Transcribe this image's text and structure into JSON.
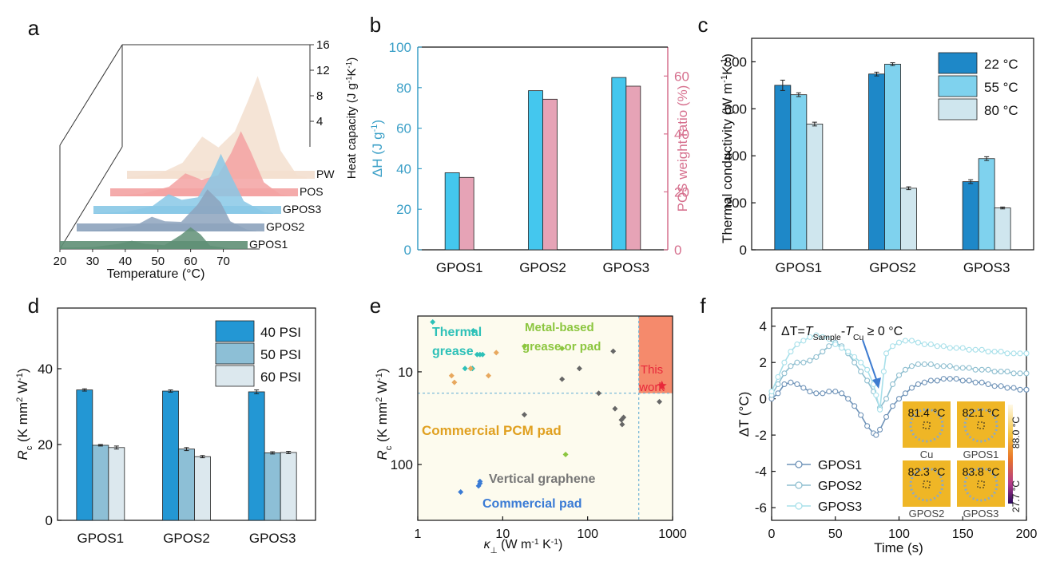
{
  "colors": {
    "b_dh": "#44c7ee",
    "b_ratio": "#e6a3b6",
    "b_left_axis": "#3a9fc7",
    "b_right_axis": "#d6708e",
    "c_22": "#1e88c8",
    "c_55": "#7fd2ee",
    "c_80": "#cfe6ee",
    "d_40": "#2397d4",
    "d_50": "#8dbfd6",
    "d_60": "#dce8ee",
    "e_bg": "#fdfbee",
    "e_this": "#f58a6c",
    "f_1": "#6f93b8",
    "f_2": "#8fbfd0",
    "f_3": "#a8e0ea"
  },
  "chart_data": [
    {
      "panel": "a",
      "type": "area",
      "xlabel": "Temperature (°C)",
      "ylabel": "Heat capacity (J g-1K-1)",
      "x_ticks": [
        "20",
        "30",
        "40",
        "50",
        "60",
        "70"
      ],
      "z_ticks": [
        "4",
        "8",
        "12",
        "16"
      ],
      "xlim": [
        20,
        75
      ],
      "zlim": [
        0,
        16
      ],
      "series": [
        {
          "name": "GPOS1",
          "color": "#5f8f76",
          "points": [
            [
              20,
              0.2
            ],
            [
              30,
              0.3
            ],
            [
              38,
              0.8
            ],
            [
              42,
              1.3
            ],
            [
              46,
              0.8
            ],
            [
              52,
              0.6
            ],
            [
              57,
              2.2
            ],
            [
              60,
              3.4
            ],
            [
              63,
              2.3
            ],
            [
              66,
              0.5
            ],
            [
              72,
              0.1
            ],
            [
              75,
              0.1
            ]
          ]
        },
        {
          "name": "GPOS2",
          "color": "#8da3bd",
          "points": [
            [
              20,
              0.1
            ],
            [
              30,
              0.3
            ],
            [
              38,
              0.9
            ],
            [
              43,
              2.3
            ],
            [
              47,
              1.6
            ],
            [
              52,
              1.5
            ],
            [
              57,
              4.2
            ],
            [
              60,
              6.6
            ],
            [
              64,
              4.6
            ],
            [
              67,
              1.6
            ],
            [
              72,
              0.3
            ],
            [
              75,
              0.1
            ]
          ]
        },
        {
          "name": "GPOS3",
          "color": "#88c8e6",
          "points": [
            [
              20,
              0.1
            ],
            [
              30,
              0.3
            ],
            [
              38,
              1.2
            ],
            [
              43,
              3.1
            ],
            [
              47,
              2.2
            ],
            [
              52,
              2.6
            ],
            [
              56,
              6.0
            ],
            [
              59,
              9.4
            ],
            [
              62,
              6.1
            ],
            [
              66,
              2.0
            ],
            [
              72,
              0.3
            ],
            [
              75,
              0.1
            ]
          ]
        },
        {
          "name": "POS",
          "color": "#f3a2a2",
          "points": [
            [
              20,
              0.1
            ],
            [
              30,
              0.4
            ],
            [
              38,
              1.5
            ],
            [
              43,
              3.6
            ],
            [
              48,
              2.6
            ],
            [
              53,
              3.3
            ],
            [
              57,
              6.8
            ],
            [
              60,
              10.2
            ],
            [
              63,
              7.0
            ],
            [
              67,
              2.2
            ],
            [
              72,
              0.3
            ],
            [
              75,
              0.1
            ]
          ]
        },
        {
          "name": "PW",
          "color": "#f3dfcf",
          "points": [
            [
              20,
              0.2
            ],
            [
              30,
              0.8
            ],
            [
              37,
              2.5
            ],
            [
              43,
              6.6
            ],
            [
              48,
              4.9
            ],
            [
              53,
              7.4
            ],
            [
              57,
              12.2
            ],
            [
              60,
              16.1
            ],
            [
              63,
              11.4
            ],
            [
              67,
              4.4
            ],
            [
              72,
              0.6
            ],
            [
              75,
              0.2
            ]
          ]
        }
      ]
    },
    {
      "panel": "b",
      "type": "bar",
      "categories": [
        "GPOS1",
        "GPOS2",
        "GPOS3"
      ],
      "series": [
        {
          "name": "ΔH",
          "axis": "left",
          "values": [
            38,
            78.5,
            85
          ]
        },
        {
          "name": "POS weight ratio",
          "axis": "right",
          "values": [
            25,
            52,
            56.5
          ]
        }
      ],
      "ylabel_left": "ΔH (J g-1)",
      "ylabel_right": "POS weight ratio (%)",
      "ylim_left": [
        0,
        100
      ],
      "ylim_right": [
        0,
        70
      ],
      "yticks_left": [
        "0",
        "20",
        "40",
        "60",
        "80",
        "100"
      ],
      "yticks_right": [
        "0",
        "20",
        "40",
        "60"
      ]
    },
    {
      "panel": "c",
      "type": "bar",
      "categories": [
        "GPOS1",
        "GPOS2",
        "GPOS3"
      ],
      "series": [
        {
          "name": "22 °C",
          "values": [
            700,
            748,
            290
          ],
          "errors": [
            22,
            8,
            8
          ]
        },
        {
          "name": "55 °C",
          "values": [
            660,
            790,
            388
          ],
          "errors": [
            8,
            6,
            8
          ]
        },
        {
          "name": "80 °C",
          "values": [
            535,
            262,
            178
          ],
          "errors": [
            8,
            6,
            4
          ]
        }
      ],
      "ylabel": "Thermal conductivity (W m-1K-1)",
      "ylim": [
        0,
        900
      ],
      "yticks": [
        "0",
        "200",
        "400",
        "600",
        "800"
      ],
      "legend": [
        "22 °C",
        "55 °C",
        "80 °C"
      ]
    },
    {
      "panel": "d",
      "type": "bar",
      "categories": [
        "GPOS1",
        "GPOS2",
        "GPOS3"
      ],
      "series": [
        {
          "name": "40 PSI",
          "values": [
            34.4,
            34.1,
            33.9
          ],
          "errors": [
            0.3,
            0.3,
            0.5
          ]
        },
        {
          "name": "50 PSI",
          "values": [
            19.8,
            18.8,
            17.8
          ],
          "errors": [
            0.2,
            0.4,
            0.3
          ]
        },
        {
          "name": "60 PSI",
          "values": [
            19.2,
            16.8,
            17.9
          ],
          "errors": [
            0.4,
            0.3,
            0.3
          ]
        }
      ],
      "ylabel": "Rc (K mm2 W-1)",
      "ylim": [
        0,
        56
      ],
      "yticks": [
        "0",
        "20",
        "40"
      ],
      "legend": [
        "40 PSI",
        "50 PSI",
        "60 PSI"
      ]
    },
    {
      "panel": "e",
      "type": "scatter",
      "xscale": "log",
      "yscale": "log-inverted",
      "xlim": [
        1,
        1000
      ],
      "ylim": [
        2.5,
        400
      ],
      "xticks": [
        "1",
        "10",
        "100",
        "1000"
      ],
      "yticks": [
        "10",
        "100"
      ],
      "xlabel": "κ⊥ (W m-1 K-1)",
      "ylabel": "Rc (K mm2 W-1)",
      "threshold_x": 400,
      "threshold_y": 17,
      "groups": [
        {
          "name": "Thermal grease",
          "color": "#2ec1b8",
          "points": [
            [
              1.5,
              2.9
            ],
            [
              4.5,
              3.6
            ],
            [
              5,
              6.5
            ],
            [
              5.4,
              6.5
            ],
            [
              5.8,
              6.5
            ],
            [
              3.6,
              9.2
            ],
            [
              4.2,
              9.2
            ],
            [
              4.4,
              9.2
            ]
          ]
        },
        {
          "name": "Metal-based grease or pad",
          "color": "#8cc63f",
          "points": [
            [
              18,
              5.3
            ],
            [
              50,
              5.6
            ],
            [
              55,
              78
            ]
          ]
        },
        {
          "name": "Commercial PCM pad",
          "color": "#e8a85e",
          "points": [
            [
              2.5,
              11
            ],
            [
              2.7,
              13
            ],
            [
              4.2,
              9.2
            ],
            [
              6.8,
              11
            ],
            [
              8.4,
              6.2
            ]
          ]
        },
        {
          "name": "Vertical graphene",
          "color": "#666666",
          "points": [
            [
              18,
              29
            ],
            [
              50,
              12
            ],
            [
              80,
              9.2
            ],
            [
              135,
              17
            ],
            [
              200,
              6
            ],
            [
              210,
              25
            ],
            [
              250,
              33
            ],
            [
              265,
              31
            ],
            [
              255,
              37
            ],
            [
              700,
              21
            ]
          ]
        },
        {
          "name": "Commercial pad",
          "color": "#3a7bd5",
          "points": [
            [
              3.2,
              198
            ],
            [
              5.2,
              170
            ],
            [
              5.4,
              152
            ],
            [
              5.4,
              160
            ]
          ]
        },
        {
          "name": "This work",
          "color": "#e8283a",
          "points": [
            [
              750,
              14
            ]
          ]
        }
      ],
      "labels": {
        "thermal_grease": [
          "Thermal",
          "grease"
        ],
        "metal_based": [
          "Metal-based",
          "grease or pad"
        ],
        "pcm": "Commercial PCM pad",
        "vertical_graphene": "Vertical graphene",
        "commercial_pad": "Commercial pad",
        "this_work": [
          "This",
          "work"
        ]
      }
    },
    {
      "panel": "f",
      "type": "line",
      "xlabel": "Time (s)",
      "ylabel": "ΔT (°C)",
      "xlim": [
        0,
        200
      ],
      "ylim": [
        -6.7,
        5
      ],
      "xticks": [
        "0",
        "50",
        "100",
        "150",
        "200"
      ],
      "yticks": [
        "4",
        "2",
        "0",
        "-2",
        "-4",
        "-6"
      ],
      "series": [
        {
          "name": "GPOS1",
          "x": [
            0,
            5,
            10,
            15,
            20,
            25,
            30,
            35,
            40,
            45,
            50,
            55,
            60,
            65,
            70,
            75,
            80,
            82,
            85,
            90,
            95,
            100,
            105,
            110,
            115,
            120,
            125,
            130,
            135,
            140,
            145,
            150,
            155,
            160,
            165,
            170,
            175,
            180,
            185,
            190,
            195,
            200
          ],
          "y": [
            0,
            0.3,
            0.8,
            0.9,
            0.8,
            0.6,
            0.4,
            0.3,
            0.3,
            0.4,
            0.4,
            0.3,
            0,
            -0.4,
            -0.9,
            -1.5,
            -1.9,
            -2.0,
            -1.7,
            -1.0,
            -0.4,
            0,
            0.3,
            0.6,
            0.8,
            0.9,
            1.0,
            1.0,
            1.1,
            1.1,
            1.1,
            1.0,
            1.0,
            0.9,
            0.9,
            0.8,
            0.7,
            0.7,
            0.6,
            0.6,
            0.5,
            0.5
          ]
        },
        {
          "name": "GPOS2",
          "x": [
            0,
            5,
            10,
            15,
            20,
            25,
            30,
            35,
            40,
            45,
            50,
            55,
            60,
            65,
            70,
            75,
            80,
            85,
            90,
            95,
            100,
            105,
            110,
            115,
            120,
            125,
            130,
            135,
            140,
            145,
            150,
            155,
            160,
            165,
            170,
            175,
            180,
            185,
            190,
            195,
            200
          ],
          "y": [
            0.2,
            0.8,
            1.4,
            1.8,
            2.0,
            2.0,
            2.1,
            2.3,
            2.6,
            2.9,
            3.1,
            2.9,
            2.5,
            2.0,
            1.5,
            1.0,
            0.4,
            -0.5,
            0,
            0.8,
            1.3,
            1.6,
            1.8,
            1.9,
            1.9,
            1.9,
            1.8,
            1.8,
            1.8,
            1.7,
            1.7,
            1.7,
            1.6,
            1.6,
            1.6,
            1.5,
            1.5,
            1.5,
            1.4,
            1.4,
            1.4
          ]
        },
        {
          "name": "GPOS3",
          "x": [
            0,
            5,
            10,
            15,
            20,
            25,
            30,
            35,
            40,
            45,
            50,
            55,
            60,
            65,
            70,
            75,
            80,
            82,
            85,
            88,
            90,
            95,
            100,
            105,
            110,
            115,
            120,
            125,
            130,
            135,
            140,
            145,
            150,
            155,
            160,
            165,
            170,
            175,
            180,
            185,
            190,
            195,
            200
          ],
          "y": [
            0.4,
            1.2,
            2.0,
            2.6,
            3.0,
            3.2,
            3.4,
            3.5,
            3.4,
            3.3,
            3.0,
            2.8,
            2.6,
            2.3,
            2.0,
            1.6,
            0.8,
            0.2,
            -0.6,
            1.5,
            2.5,
            2.9,
            3.1,
            3.2,
            3.2,
            3.1,
            3.0,
            3.0,
            2.9,
            2.9,
            2.8,
            2.8,
            2.8,
            2.7,
            2.7,
            2.7,
            2.6,
            2.6,
            2.6,
            2.5,
            2.5,
            2.5,
            2.5
          ]
        }
      ],
      "annotation": {
        "lead": "ΔT=",
        "t1": "T",
        "sub1": "Sample",
        "mid": "-",
        "t2": "T",
        "sub2": "Cu",
        "tail": " ≥ 0 °C"
      },
      "insets": [
        {
          "temp": "81.4 °C",
          "label": "Cu"
        },
        {
          "temp": "82.1 °C",
          "label": "GPOS1"
        },
        {
          "temp": "82.3 °C",
          "label": "GPOS2"
        },
        {
          "temp": "83.8 °C",
          "label": "GPOS3"
        }
      ],
      "colorbar": {
        "max": "88.0 °C",
        "min": "27.7 °C"
      }
    }
  ],
  "panel_labels": {
    "a": "a",
    "b": "b",
    "c": "c",
    "d": "d",
    "e": "e",
    "f": "f"
  }
}
